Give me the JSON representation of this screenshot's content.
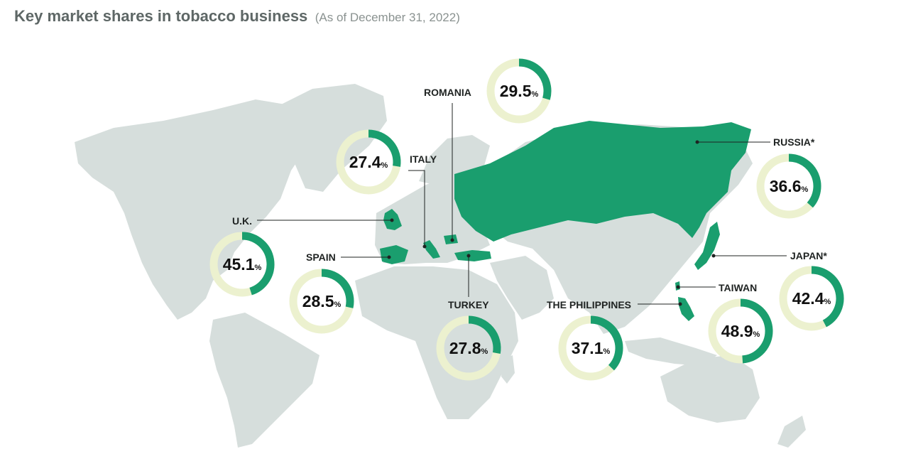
{
  "header": {
    "title": "Key market shares in tobacco business",
    "subtitle": "(As of December 31, 2022)"
  },
  "colors": {
    "highlight": "#1a9e6e",
    "land": "#d6dedc",
    "ring_track": "#ecf1cf"
  },
  "markets": [
    {
      "id": "romania",
      "label": "ROMANIA",
      "share": 29.5,
      "display": "29.5"
    },
    {
      "id": "italy",
      "label": "ITALY",
      "share": 27.4,
      "display": "27.4"
    },
    {
      "id": "russia",
      "label": "RUSSIA*",
      "share": 36.6,
      "display": "36.6"
    },
    {
      "id": "uk",
      "label": "U.K.",
      "share": 45.1,
      "display": "45.1"
    },
    {
      "id": "spain",
      "label": "SPAIN",
      "share": 28.5,
      "display": "28.5"
    },
    {
      "id": "turkey",
      "label": "TURKEY",
      "share": 27.8,
      "display": "27.8"
    },
    {
      "id": "philippines",
      "label": "THE PHILIPPINES",
      "share": 37.1,
      "display": "37.1"
    },
    {
      "id": "taiwan",
      "label": "TAIWAN",
      "share": 48.9,
      "display": "48.9"
    },
    {
      "id": "japan",
      "label": "JAPAN*",
      "share": 42.4,
      "display": "42.4"
    }
  ],
  "percent_sign": "%"
}
